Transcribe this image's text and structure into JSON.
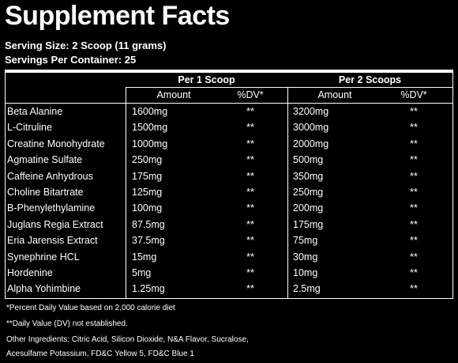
{
  "title": "Supplement Facts",
  "serving_size": "Serving Size: 2 Scoop (11 grams)",
  "servings_per_container": "Servings Per Container: 25",
  "groups": [
    {
      "label": "Per 1 Scoop",
      "amount_header": "Amount",
      "dv_header": "%DV*"
    },
    {
      "label": "Per 2 Scoops",
      "amount_header": "Amount",
      "dv_header": "%DV*"
    }
  ],
  "rows": [
    {
      "name": "Beta Alanine",
      "amount1": "1600mg",
      "dv1": "**",
      "amount2": "3200mg",
      "dv2": "**"
    },
    {
      "name": "L-Citruline",
      "amount1": "1500mg",
      "dv1": "**",
      "amount2": "3000mg",
      "dv2": "**"
    },
    {
      "name": "Creatine Monohydrate",
      "amount1": "1000mg",
      "dv1": "**",
      "amount2": "2000mg",
      "dv2": "**"
    },
    {
      "name": "Agmatine Sulfate",
      "amount1": "250mg",
      "dv1": "**",
      "amount2": "500mg",
      "dv2": "**"
    },
    {
      "name": "Caffeine Anhydrous",
      "amount1": "175mg",
      "dv1": "**",
      "amount2": "350mg",
      "dv2": "**"
    },
    {
      "name": "Choline Bitartrate",
      "amount1": "125mg",
      "dv1": "**",
      "amount2": "250mg",
      "dv2": "**"
    },
    {
      "name": "B-Phenylethylamine",
      "amount1": "100mg",
      "dv1": "**",
      "amount2": "200mg",
      "dv2": "**"
    },
    {
      "name": "Juglans Regia Extract",
      "amount1": "87.5mg",
      "dv1": "**",
      "amount2": "175mg",
      "dv2": "**"
    },
    {
      "name": "Eria Jarensis Extract",
      "amount1": "37.5mg",
      "dv1": "**",
      "amount2": "75mg",
      "dv2": "**"
    },
    {
      "name": "Synephrine HCL",
      "amount1": "15mg",
      "dv1": "**",
      "amount2": "30mg",
      "dv2": "**"
    },
    {
      "name": "Hordenine",
      "amount1": "5mg",
      "dv1": "**",
      "amount2": "10mg",
      "dv2": "**"
    },
    {
      "name": "Alpha Yohimbine",
      "amount1": "1.25mg",
      "dv1": "**",
      "amount2": "2.5mg",
      "dv2": "**"
    }
  ],
  "footnotes": [
    "*Percent Daily Value based on 2,000 calorie diet",
    "**Daily Value (DV) not established.",
    "Other Ingredients: Citric Acid, Silicon Dioxide, N&A Flavor, Sucralose,",
    "Acesulfame Potassium, FD&C Yellow 5, FD&C Blue 1"
  ]
}
